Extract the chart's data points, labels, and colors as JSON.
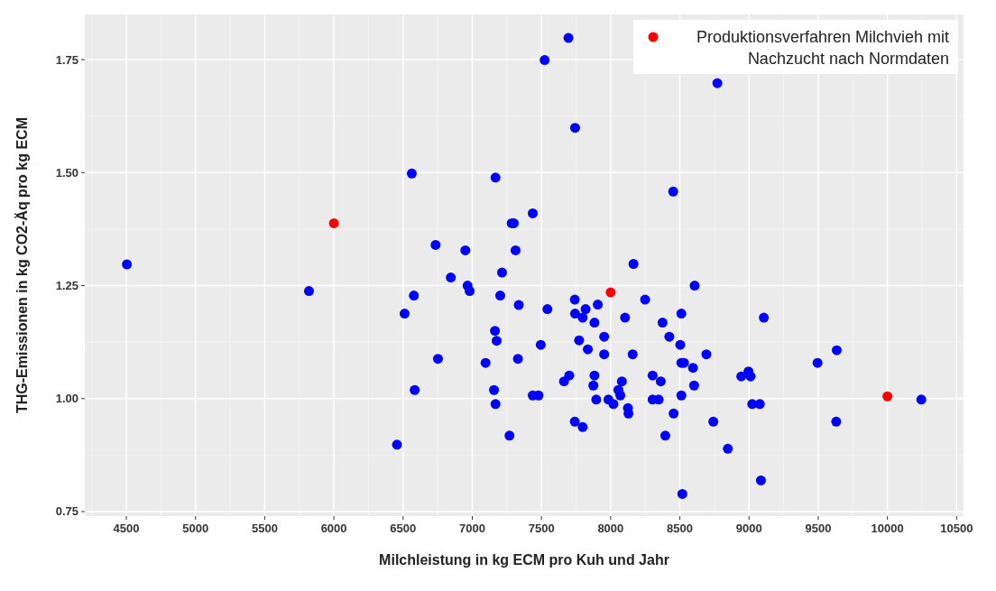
{
  "chart_data": {
    "type": "scatter",
    "xlabel": "Milchleistung in kg ECM pro Kuh und Jahr",
    "ylabel": "THG-Emissionen in kg CO2-Äq pro kg ECM",
    "xlim": [
      4200,
      10550
    ],
    "ylim": [
      0.74,
      1.85
    ],
    "xticks": [
      4500,
      5000,
      5500,
      6000,
      6500,
      7000,
      7500,
      8000,
      8500,
      9000,
      9500,
      10000,
      10500
    ],
    "yticks": [
      0.75,
      {
        "value": 1,
        "label": "1.00"
      },
      1.25,
      {
        "value": 1.5,
        "label": "1.50"
      },
      1.75
    ],
    "grid": true,
    "legend": "top right",
    "marker": "circle",
    "series": [
      {
        "color": "#0000ff",
        "x": [
          4504,
          5820,
          6578,
          6511,
          6845,
          6966,
          6981,
          7215,
          7202,
          7336,
          7164,
          7176,
          6752,
          7096,
          7330,
          6584,
          7157,
          7168,
          7269,
          6456,
          7437,
          7479,
          6563,
          7168,
          7285,
          7300,
          7437,
          6735,
          6950,
          7313,
          7695,
          7523,
          8771,
          7743,
          8452,
          8165,
          8607,
          7741,
          8249,
          7543,
          7907,
          7819,
          7743,
          7798,
          8511,
          9107,
          8104,
          7883,
          8375,
          7953,
          8424,
          7772,
          7495,
          8503,
          7835,
          7953,
          8159,
          8692,
          9634,
          9495,
          8511,
          8530,
          8595,
          7701,
          7663,
          7883,
          7875,
          8081,
          8056,
          8070,
          8303,
          8362,
          8603,
          8944,
          8996,
          9011,
          7896,
          7984,
          8020,
          8303,
          8347,
          8511,
          9023,
          9078,
          10245,
          8125,
          8129,
          8455,
          7741,
          7798,
          8742,
          9630,
          8395,
          8847,
          9086,
          8518
        ],
        "values": [
          1.297,
          1.238,
          1.228,
          1.188,
          1.268,
          1.25,
          1.238,
          1.279,
          1.228,
          1.207,
          1.15,
          1.128,
          1.088,
          1.079,
          1.088,
          1.019,
          1.019,
          0.988,
          0.918,
          0.898,
          1.007,
          1.007,
          1.498,
          1.489,
          1.388,
          1.388,
          1.41,
          1.34,
          1.328,
          1.328,
          1.798,
          1.749,
          1.698,
          1.599,
          1.458,
          1.298,
          1.25,
          1.219,
          1.219,
          1.198,
          1.208,
          1.198,
          1.188,
          1.179,
          1.188,
          1.179,
          1.179,
          1.168,
          1.168,
          1.137,
          1.137,
          1.129,
          1.119,
          1.119,
          1.109,
          1.098,
          1.098,
          1.098,
          1.107,
          1.079,
          1.079,
          1.079,
          1.068,
          1.051,
          1.038,
          1.051,
          1.029,
          1.038,
          1.019,
          1.007,
          1.051,
          1.038,
          1.029,
          1.049,
          1.06,
          1.049,
          0.998,
          0.998,
          0.988,
          0.998,
          0.998,
          1.007,
          0.988,
          0.988,
          0.998,
          0.979,
          0.967,
          0.967,
          0.949,
          0.937,
          0.949,
          0.949,
          0.918,
          0.889,
          0.819,
          0.789
        ]
      },
      {
        "name": "Produktionsverfahren Milchvieh mit Nachzucht nach Normdaten",
        "color": "#ff0000",
        "x": [
          6000,
          8000,
          10000
        ],
        "values": [
          1.388,
          1.235,
          1.005
        ]
      }
    ]
  }
}
